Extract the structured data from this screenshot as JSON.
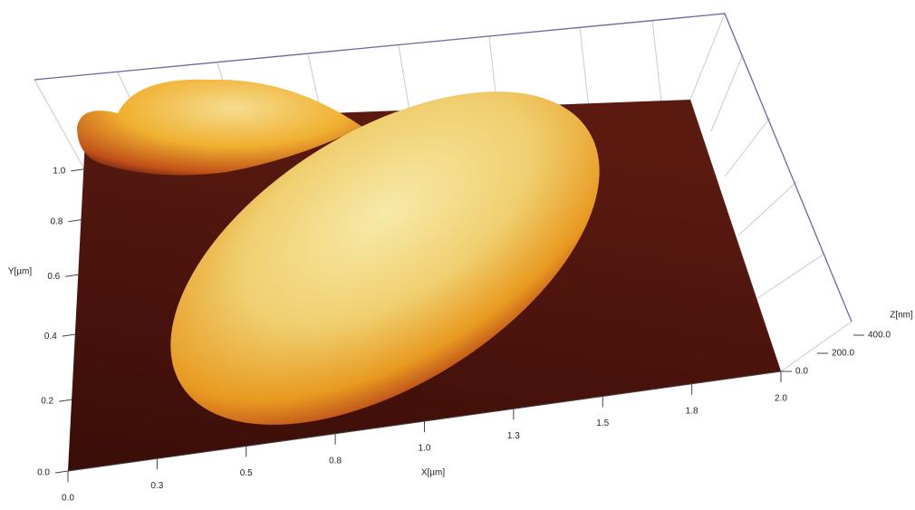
{
  "chart_data": {
    "type": "surface",
    "x_label": "X[µm]",
    "y_label": "Y[µm]",
    "z_label": "Z[nm]",
    "xlim": [
      0,
      2
    ],
    "ylim": [
      0,
      1.2
    ],
    "zlim": [
      0,
      400
    ],
    "xticks": [
      {
        "value": 0,
        "label": "0.0"
      },
      {
        "value": 0.25,
        "label": "0.3"
      },
      {
        "value": 0.5,
        "label": "0.5"
      },
      {
        "value": 0.75,
        "label": "0.8"
      },
      {
        "value": 1,
        "label": "1.0"
      },
      {
        "value": 1.25,
        "label": "1.3"
      },
      {
        "value": 1.5,
        "label": "1.5"
      },
      {
        "value": 1.75,
        "label": "1.8"
      },
      {
        "value": 2,
        "label": "2.0"
      }
    ],
    "yticks": [
      {
        "value": 0,
        "label": "0.0"
      },
      {
        "value": 0.2,
        "label": "0.2"
      },
      {
        "value": 0.4,
        "label": "0.4"
      },
      {
        "value": 0.6,
        "label": "0.6"
      },
      {
        "value": 0.8,
        "label": "0.8"
      },
      {
        "value": 1,
        "label": "1.0"
      }
    ],
    "zticks": [
      {
        "value": 0,
        "label": "0.0"
      },
      {
        "value": 200,
        "label": "200.0"
      },
      {
        "value": 400,
        "label": "400.0"
      }
    ]
  }
}
